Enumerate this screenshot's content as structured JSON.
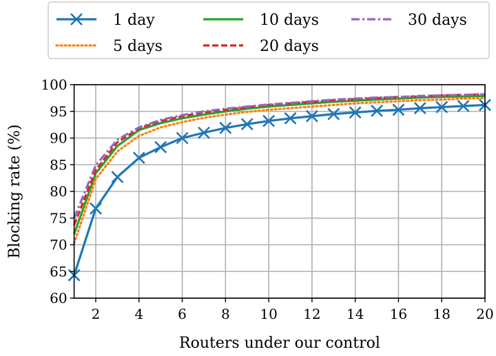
{
  "chart_data": {
    "type": "line",
    "xlabel": "Routers under our control",
    "ylabel": "Blocking rate (%)",
    "xlim": [
      1,
      20
    ],
    "ylim": [
      60,
      100
    ],
    "xticks": [
      2,
      4,
      6,
      8,
      10,
      12,
      14,
      16,
      18,
      20
    ],
    "yticks": [
      60,
      65,
      70,
      75,
      80,
      85,
      90,
      95,
      100
    ],
    "grid": true,
    "legend_placement": "top",
    "x": [
      1,
      2,
      3,
      4,
      5,
      6,
      7,
      8,
      9,
      10,
      11,
      12,
      13,
      14,
      15,
      16,
      17,
      18,
      19,
      20
    ],
    "series": [
      {
        "name": "1 day",
        "color": "#1f77b4",
        "style": "solid-x",
        "values": [
          64.3,
          76.8,
          82.7,
          86.3,
          88.3,
          90.0,
          91.0,
          91.9,
          92.6,
          93.2,
          93.7,
          94.1,
          94.5,
          94.8,
          95.1,
          95.3,
          95.6,
          95.8,
          96.0,
          96.2
        ]
      },
      {
        "name": "5 days",
        "color": "#ff7f0e",
        "style": "dotted",
        "values": [
          70.3,
          82.3,
          87.5,
          90.4,
          92.0,
          93.0,
          93.8,
          94.4,
          94.9,
          95.3,
          95.6,
          95.9,
          96.2,
          96.5,
          96.7,
          96.9,
          97.1,
          97.2,
          97.4,
          97.5
        ]
      },
      {
        "name": "10 days",
        "color": "#2ca02c",
        "style": "solid",
        "values": [
          72.0,
          83.4,
          88.5,
          91.5,
          92.8,
          93.7,
          94.4,
          95.0,
          95.5,
          95.9,
          96.2,
          96.5,
          96.8,
          97.0,
          97.2,
          97.4,
          97.6,
          97.7,
          97.8,
          97.9
        ]
      },
      {
        "name": "20 days",
        "color": "#d62728",
        "style": "dashed",
        "values": [
          73.7,
          84.0,
          89.2,
          91.8,
          93.2,
          94.1,
          94.8,
          95.3,
          95.8,
          96.2,
          96.5,
          96.8,
          97.1,
          97.3,
          97.5,
          97.7,
          97.8,
          98.0,
          98.1,
          98.2
        ]
      },
      {
        "name": "30 days",
        "color": "#9467bd",
        "style": "dashdot",
        "values": [
          75.0,
          84.9,
          89.7,
          92.0,
          93.4,
          94.3,
          95.0,
          95.5,
          95.9,
          96.3,
          96.6,
          96.9,
          97.2,
          97.4,
          97.6,
          97.7,
          97.9,
          98.0,
          98.1,
          98.2
        ]
      }
    ]
  }
}
